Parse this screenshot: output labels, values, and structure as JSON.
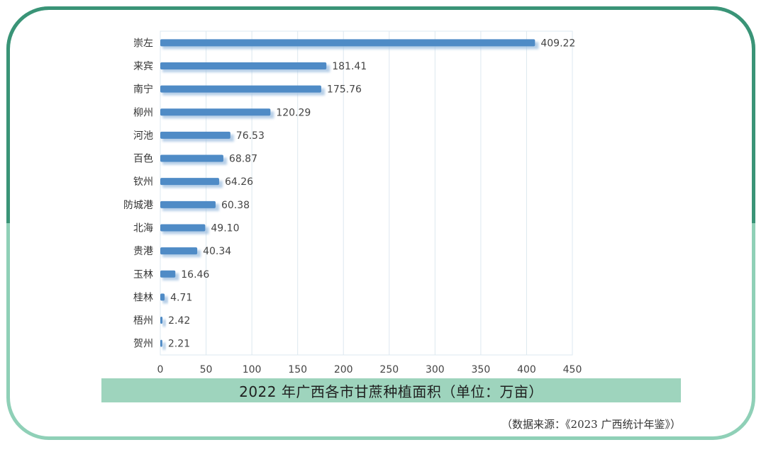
{
  "chart_data": {
    "type": "bar",
    "orientation": "horizontal",
    "title": "2022 年广西各市甘蔗种植面积（单位：万亩）",
    "categories": [
      "崇左",
      "来宾",
      "南宁",
      "柳州",
      "河池",
      "百色",
      "钦州",
      "防城港",
      "北海",
      "贵港",
      "玉林",
      "桂林",
      "梧州",
      "贺州"
    ],
    "values": [
      409.22,
      181.41,
      175.76,
      120.29,
      76.53,
      68.87,
      64.26,
      60.38,
      49.1,
      40.34,
      16.46,
      4.71,
      2.42,
      2.21
    ],
    "value_labels": [
      "409.22",
      "181.41",
      "175.76",
      "120.29",
      "76.53",
      "68.87",
      "64.26",
      "60.38",
      "49.10",
      "40.34",
      "16.46",
      "4.71",
      "2.42",
      "2.21"
    ],
    "xlim": [
      0,
      450
    ],
    "xticks": [
      0,
      50,
      100,
      150,
      200,
      250,
      300,
      350,
      400,
      450
    ],
    "grid": true,
    "bar_color": "#4f8bc6"
  },
  "caption": "2022 年广西各市甘蔗种植面积（单位：万亩）",
  "source": "（数据来源：《2023 广西统计年鉴》）"
}
